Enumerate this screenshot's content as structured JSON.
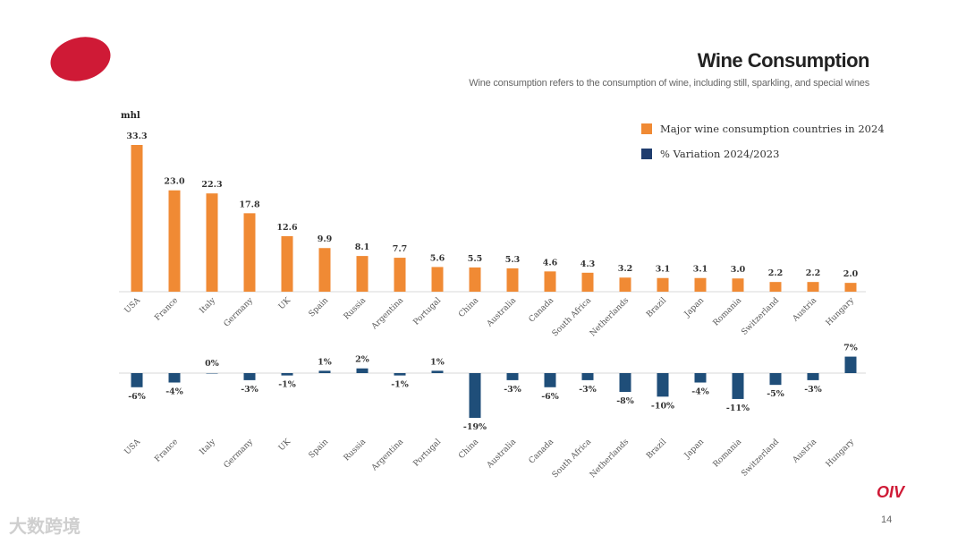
{
  "page": {
    "title": "Wine Consumption",
    "subtitle": "Wine consumption refers to the consumption of wine, including still, sparkling, and special wines",
    "page_number": "14",
    "brand": "OIV",
    "watermark": "大数跨境"
  },
  "colors": {
    "orange": "#f08a34",
    "navy": "#1f4e79",
    "accent": "#cf1a36"
  },
  "chart_data": [
    {
      "type": "bar",
      "title": "Major wine consumption countries in 2024",
      "ylabel": "mhl",
      "categories": [
        "USA",
        "France",
        "Italy",
        "Germany",
        "UK",
        "Spain",
        "Russia",
        "Argentina",
        "Portugal",
        "China",
        "Australia",
        "Canada",
        "South Africa",
        "Netherlands",
        "Brazil",
        "Japan",
        "Romania",
        "Switzerland",
        "Austria",
        "Hungary"
      ],
      "values": [
        33.3,
        23.0,
        22.3,
        17.8,
        12.6,
        9.9,
        8.1,
        7.7,
        5.6,
        5.5,
        5.3,
        4.6,
        4.3,
        3.2,
        3.1,
        3.1,
        3.0,
        2.2,
        2.2,
        2.0
      ],
      "labels": [
        "33.3",
        "23.0",
        "22.3",
        "17.8",
        "12.6",
        "9.9",
        "8.1",
        "7.7",
        "5.6",
        "5.5",
        "5.3",
        "4.6",
        "4.3",
        "3.2",
        "3.1",
        "3.1",
        "3.0",
        "2.2",
        "2.2",
        "2.0"
      ],
      "ylim": [
        0,
        35
      ],
      "legend": "Major wine consumption countries in 2024"
    },
    {
      "type": "bar",
      "title": "% Variation 2024/2023",
      "categories": [
        "USA",
        "France",
        "Italy",
        "Germany",
        "UK",
        "Spain",
        "Russia",
        "Argentina",
        "Portugal",
        "China",
        "Australia",
        "Canada",
        "South Africa",
        "Netherlands",
        "Brazil",
        "Japan",
        "Romania",
        "Switzerland",
        "Austria",
        "Hungary"
      ],
      "values": [
        -6,
        -4,
        0,
        -3,
        -1,
        1,
        2,
        -1,
        1,
        -19,
        -3,
        -6,
        -3,
        -8,
        -10,
        -4,
        -11,
        -5,
        -3,
        7
      ],
      "labels": [
        "-6%",
        "-4%",
        "0%",
        "-3%",
        "-1%",
        "1%",
        "2%",
        "-1%",
        "1%",
        "-19%",
        "-3%",
        "-6%",
        "-3%",
        "-8%",
        "-10%",
        "-4%",
        "-11%",
        "-5%",
        "-3%",
        "7%"
      ],
      "ylim": [
        -20,
        8
      ],
      "legend": "% Variation 2024/2023"
    }
  ]
}
